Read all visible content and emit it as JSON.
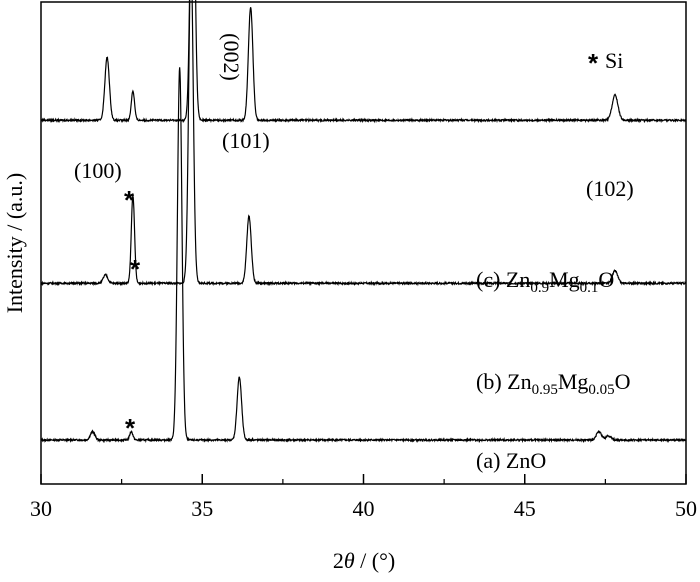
{
  "chart_data": {
    "type": "line",
    "title": "",
    "xlabel_prefix": "2",
    "xlabel_symbol": "θ",
    "xlabel_suffix": " / (°)",
    "ylabel": "Intensity / (a.u.)",
    "xlim": [
      30,
      50
    ],
    "x_ticks": [
      "30",
      "35",
      "40",
      "45",
      "50"
    ],
    "y_ticks": [],
    "grid": false,
    "legend": {
      "marker": "*",
      "label": "Si",
      "placement": "top-right"
    },
    "series": [
      {
        "offset": 0.0,
        "peaks": [
          {
            "x": 31.6,
            "h": 0.02,
            "w": 0.07
          },
          {
            "x": 32.8,
            "h": 0.02,
            "w": 0.05
          },
          {
            "x": 34.3,
            "h": 0.89,
            "w": 0.07
          },
          {
            "x": 36.15,
            "h": 0.15,
            "w": 0.07
          },
          {
            "x": 47.3,
            "h": 0.02,
            "w": 0.08
          },
          {
            "x": 47.6,
            "h": 0.01,
            "w": 0.08
          }
        ]
      },
      {
        "offset": 0.375,
        "peaks": [
          {
            "x": 32.0,
            "h": 0.02,
            "w": 0.07
          },
          {
            "x": 32.85,
            "h": 0.21,
            "w": 0.05
          },
          {
            "x": 34.65,
            "h": 0.78,
            "w": 0.07
          },
          {
            "x": 36.45,
            "h": 0.16,
            "w": 0.07
          },
          {
            "x": 47.8,
            "h": 0.03,
            "w": 0.08
          }
        ]
      },
      {
        "offset": 0.765,
        "peaks": [
          {
            "x": 32.05,
            "h": 0.15,
            "w": 0.07
          },
          {
            "x": 32.85,
            "h": 0.07,
            "w": 0.05
          },
          {
            "x": 34.7,
            "h": 0.74,
            "w": 0.07
          },
          {
            "x": 36.5,
            "h": 0.27,
            "w": 0.07
          },
          {
            "x": 47.8,
            "h": 0.06,
            "w": 0.09
          }
        ]
      }
    ],
    "peak_labels": [
      "(100)",
      "(002)",
      "(101)",
      "(102)"
    ],
    "sample_labels": [
      {
        "prefix": "(a) ZnO",
        "parts": []
      },
      {
        "prefix": "(b) Zn",
        "parts": [
          {
            "sub": "0.95"
          },
          {
            "text": "Mg"
          },
          {
            "sub": "0.05"
          },
          {
            "text": "O"
          }
        ]
      },
      {
        "prefix": "(c) Zn",
        "parts": [
          {
            "sub": "0.9"
          },
          {
            "text": "Mg"
          },
          {
            "sub": "0.1"
          },
          {
            "text": "O"
          }
        ]
      }
    ],
    "si_markers": [
      "*",
      "*",
      "*"
    ]
  }
}
